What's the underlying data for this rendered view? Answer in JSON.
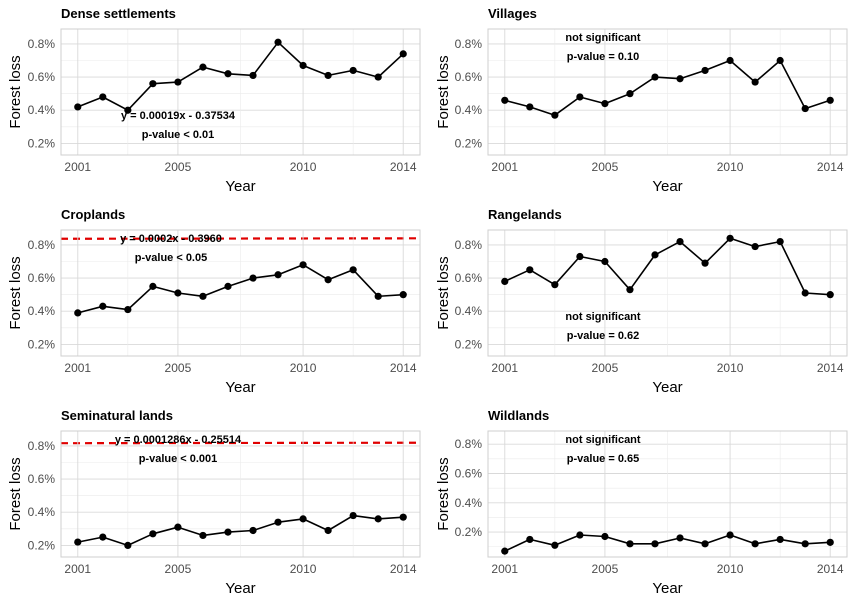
{
  "chart_data": [
    {
      "type": "line",
      "title": "Dense settlements",
      "xlabel": "Year",
      "ylabel": "Forest loss",
      "x": [
        2001,
        2002,
        2003,
        2004,
        2005,
        2006,
        2007,
        2008,
        2009,
        2010,
        2011,
        2012,
        2013,
        2014
      ],
      "values": [
        0.42,
        0.48,
        0.4,
        0.56,
        0.57,
        0.66,
        0.62,
        0.61,
        0.81,
        0.67,
        0.61,
        0.64,
        0.6,
        0.74
      ],
      "trend": {
        "slope": 0.00019,
        "intercept": -0.37534
      },
      "annotations": [
        "y = 0.00019x - 0.37534",
        "p-value < 0.01"
      ],
      "annotation_position": "bottom-left",
      "xticks": [
        "2001",
        "2005",
        "2010",
        "2014"
      ],
      "yticks": [
        "0.2%",
        "0.4%",
        "0.6%",
        "0.8%"
      ],
      "ylim": [
        0.13,
        0.89
      ],
      "grid": true,
      "line_color": "#000000",
      "trend_color": "#e00000"
    },
    {
      "type": "line",
      "title": "Villages",
      "xlabel": "Year",
      "ylabel": "Forest loss",
      "x": [
        2001,
        2002,
        2003,
        2004,
        2005,
        2006,
        2007,
        2008,
        2009,
        2010,
        2011,
        2012,
        2013,
        2014
      ],
      "values": [
        0.46,
        0.42,
        0.37,
        0.48,
        0.44,
        0.5,
        0.6,
        0.59,
        0.64,
        0.7,
        0.57,
        0.7,
        0.41,
        0.46
      ],
      "trend": null,
      "annotations": [
        "not significant",
        "p-value = 0.10"
      ],
      "annotation_position": "top-left",
      "xticks": [
        "2001",
        "2005",
        "2010",
        "2014"
      ],
      "yticks": [
        "0.2%",
        "0.4%",
        "0.6%",
        "0.8%"
      ],
      "ylim": [
        0.13,
        0.89
      ],
      "grid": true,
      "line_color": "#000000"
    },
    {
      "type": "line",
      "title": "Croplands",
      "xlabel": "Year",
      "ylabel": "Forest loss",
      "x": [
        2001,
        2002,
        2003,
        2004,
        2005,
        2006,
        2007,
        2008,
        2009,
        2010,
        2011,
        2012,
        2013,
        2014
      ],
      "values": [
        0.39,
        0.43,
        0.41,
        0.55,
        0.51,
        0.49,
        0.55,
        0.6,
        0.62,
        0.68,
        0.59,
        0.65,
        0.49,
        0.5
      ],
      "trend": {
        "slope": 0.0002,
        "intercept": -0.396
      },
      "annotations": [
        "y = 0.0002x - 0.3960",
        "p-value < 0.05"
      ],
      "annotation_position": "top-left",
      "xticks": [
        "2001",
        "2005",
        "2010",
        "2014"
      ],
      "yticks": [
        "0.2%",
        "0.4%",
        "0.6%",
        "0.8%"
      ],
      "ylim": [
        0.13,
        0.89
      ],
      "grid": true,
      "line_color": "#000000",
      "trend_color": "#e00000"
    },
    {
      "type": "line",
      "title": "Rangelands",
      "xlabel": "Year",
      "ylabel": "Forest loss",
      "x": [
        2001,
        2002,
        2003,
        2004,
        2005,
        2006,
        2007,
        2008,
        2009,
        2010,
        2011,
        2012,
        2013,
        2014
      ],
      "values": [
        0.58,
        0.65,
        0.56,
        0.73,
        0.7,
        0.53,
        0.74,
        0.82,
        0.69,
        0.84,
        0.79,
        0.82,
        0.51,
        0.5
      ],
      "trend": null,
      "annotations": [
        "not significant",
        "p-value = 0.62"
      ],
      "annotation_position": "bottom-left",
      "xticks": [
        "2001",
        "2005",
        "2010",
        "2014"
      ],
      "yticks": [
        "0.2%",
        "0.4%",
        "0.6%",
        "0.8%"
      ],
      "ylim": [
        0.13,
        0.89
      ],
      "grid": true,
      "line_color": "#000000"
    },
    {
      "type": "line",
      "title": "Seminatural lands",
      "xlabel": "Year",
      "ylabel": "Forest loss",
      "x": [
        2001,
        2002,
        2003,
        2004,
        2005,
        2006,
        2007,
        2008,
        2009,
        2010,
        2011,
        2012,
        2013,
        2014
      ],
      "values": [
        0.22,
        0.25,
        0.2,
        0.27,
        0.31,
        0.26,
        0.28,
        0.29,
        0.34,
        0.36,
        0.29,
        0.38,
        0.36,
        0.37
      ],
      "trend": {
        "slope": 0.0001286,
        "intercept": -0.25514
      },
      "annotations": [
        "y = 0.0001286x - 0.25514",
        "p-value < 0.001"
      ],
      "annotation_position": "top-left",
      "xticks": [
        "2001",
        "2005",
        "2010",
        "2014"
      ],
      "yticks": [
        "0.2%",
        "0.4%",
        "0.6%",
        "0.8%"
      ],
      "ylim": [
        0.13,
        0.89
      ],
      "grid": true,
      "line_color": "#000000",
      "trend_color": "#e00000"
    },
    {
      "type": "line",
      "title": "Wildlands",
      "xlabel": "Year",
      "ylabel": "Forest loss",
      "x": [
        2001,
        2002,
        2003,
        2004,
        2005,
        2006,
        2007,
        2008,
        2009,
        2010,
        2011,
        2012,
        2013,
        2014
      ],
      "values": [
        0.07,
        0.15,
        0.11,
        0.18,
        0.17,
        0.12,
        0.12,
        0.16,
        0.12,
        0.18,
        0.12,
        0.15,
        0.12,
        0.13
      ],
      "trend": null,
      "annotations": [
        "not significant",
        "p-value = 0.65"
      ],
      "annotation_position": "top-left",
      "xticks": [
        "2001",
        "2005",
        "2010",
        "2014"
      ],
      "yticks": [
        "0.2%",
        "0.4%",
        "0.6%",
        "0.8%"
      ],
      "ylim": [
        0.03,
        0.89
      ],
      "grid": true,
      "line_color": "#000000"
    }
  ]
}
